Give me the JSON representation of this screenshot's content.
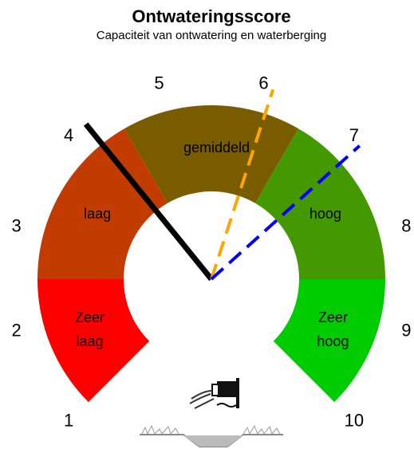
{
  "chart_data": {
    "type": "gauge",
    "title": "Ontwateringsscore",
    "subtitle": "Capaciteit van ontwatering en waterberging",
    "xlim": [
      1,
      10
    ],
    "xticks": [
      1,
      2,
      3,
      4,
      5,
      6,
      7,
      8,
      9,
      10
    ],
    "bands": [
      {
        "name": "Zeer laag",
        "from": 1,
        "to": 2.5,
        "color": "#ff0000"
      },
      {
        "name": "laag",
        "from": 2.5,
        "to": 4.5,
        "color": "#c23b00"
      },
      {
        "name": "gemiddeld",
        "from": 4.5,
        "to": 6.5,
        "color": "#7a5c00"
      },
      {
        "name": "hoog",
        "from": 6.5,
        "to": 8.5,
        "color": "#449900"
      },
      {
        "name": "Zeer hoog",
        "from": 8.5,
        "to": 10,
        "color": "#00cc00"
      }
    ],
    "needles": [
      {
        "value": 4.2,
        "color": "#000000",
        "style": "solid"
      },
      {
        "value": 6.1,
        "color": "#ffa500",
        "style": "dashed"
      },
      {
        "value": 7.1,
        "color": "#0000ff",
        "style": "dashed"
      }
    ]
  }
}
